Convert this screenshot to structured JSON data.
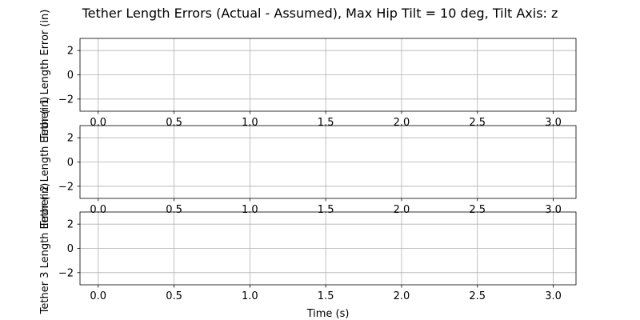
{
  "chart_data": {
    "type": "line",
    "title": "Tether Length Errors (Actual - Assumed), Max Hip Tilt = 10 deg, Tilt Axis: z",
    "grid": true,
    "xlim": [
      -0.12,
      3.15
    ],
    "ylim": [
      -3,
      3
    ],
    "x_ticks": [
      0.0,
      0.5,
      1.0,
      1.5,
      2.0,
      2.5,
      3.0
    ],
    "x_tick_labels": [
      "0.0",
      "0.5",
      "1.0",
      "1.5",
      "2.0",
      "2.5",
      "3.0"
    ],
    "y_ticks": [
      2,
      0,
      -2
    ],
    "y_tick_labels": [
      "2",
      "0",
      "−2"
    ],
    "subplots": [
      {
        "ylabel": "Tether 1 Length Error (in)",
        "xlabel": "",
        "series": []
      },
      {
        "ylabel": "Tether 2 Length Error (in)",
        "xlabel": "",
        "series": []
      },
      {
        "ylabel": "Tether 3 Length Error (in)",
        "xlabel": "Time (s)",
        "series": []
      }
    ],
    "colors": {
      "grid": "#b0b0b0",
      "frame": "#000000",
      "text": "#000000",
      "background": "#ffffff"
    }
  }
}
